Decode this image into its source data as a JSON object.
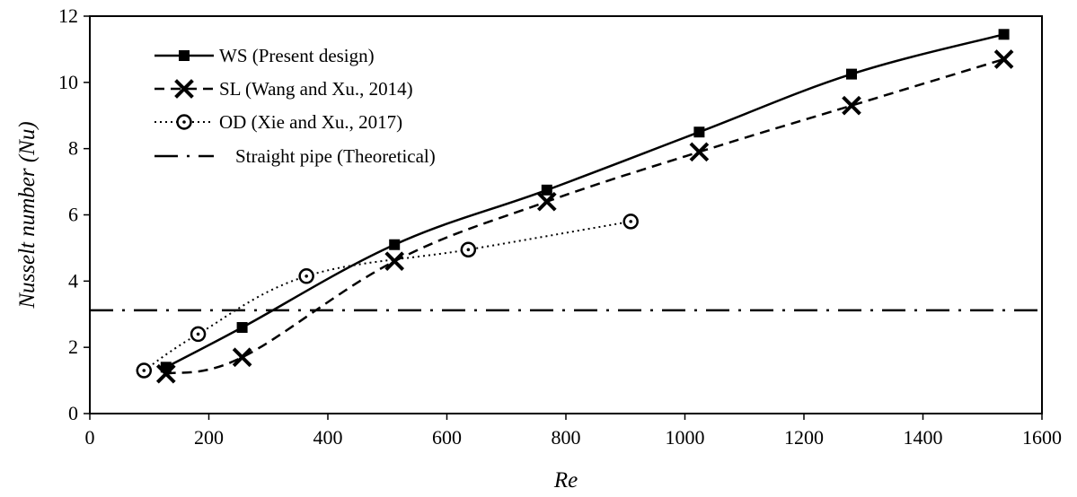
{
  "chart_data": {
    "type": "line",
    "xlabel": "Re",
    "ylabel": "Nusselt number (Nu)",
    "xlim": [
      0,
      1600
    ],
    "ylim": [
      0,
      12
    ],
    "xticks": [
      0,
      200,
      400,
      600,
      800,
      1000,
      1200,
      1400,
      1600
    ],
    "yticks": [
      0,
      2,
      4,
      6,
      8,
      10,
      12
    ],
    "grid": false,
    "legend_position": "top-left",
    "series": [
      {
        "name": "WS (Present design)",
        "marker": "square",
        "line_style": "solid",
        "x": [
          128,
          256,
          512,
          768,
          1024,
          1280,
          1536
        ],
        "y": [
          1.4,
          2.6,
          5.1,
          6.75,
          8.5,
          10.25,
          11.45
        ]
      },
      {
        "name": "SL  (Wang and Xu., 2014)",
        "marker": "x",
        "line_style": "dashed",
        "x": [
          128,
          256,
          512,
          768,
          1024,
          1280,
          1536
        ],
        "y": [
          1.2,
          1.7,
          4.6,
          6.4,
          7.9,
          9.3,
          10.7
        ]
      },
      {
        "name": "OD (Xie and Xu., 2017)",
        "marker": "circle-dot",
        "line_style": "dotted",
        "x": [
          91,
          182,
          364,
          636,
          909
        ],
        "y": [
          1.3,
          2.4,
          4.15,
          4.95,
          5.8
        ]
      },
      {
        "name": "Straight pipe (Theoretical)",
        "marker": "none",
        "line_style": "dash-dot",
        "x": [
          0,
          1600
        ],
        "y": [
          3.12,
          3.12
        ]
      }
    ]
  }
}
